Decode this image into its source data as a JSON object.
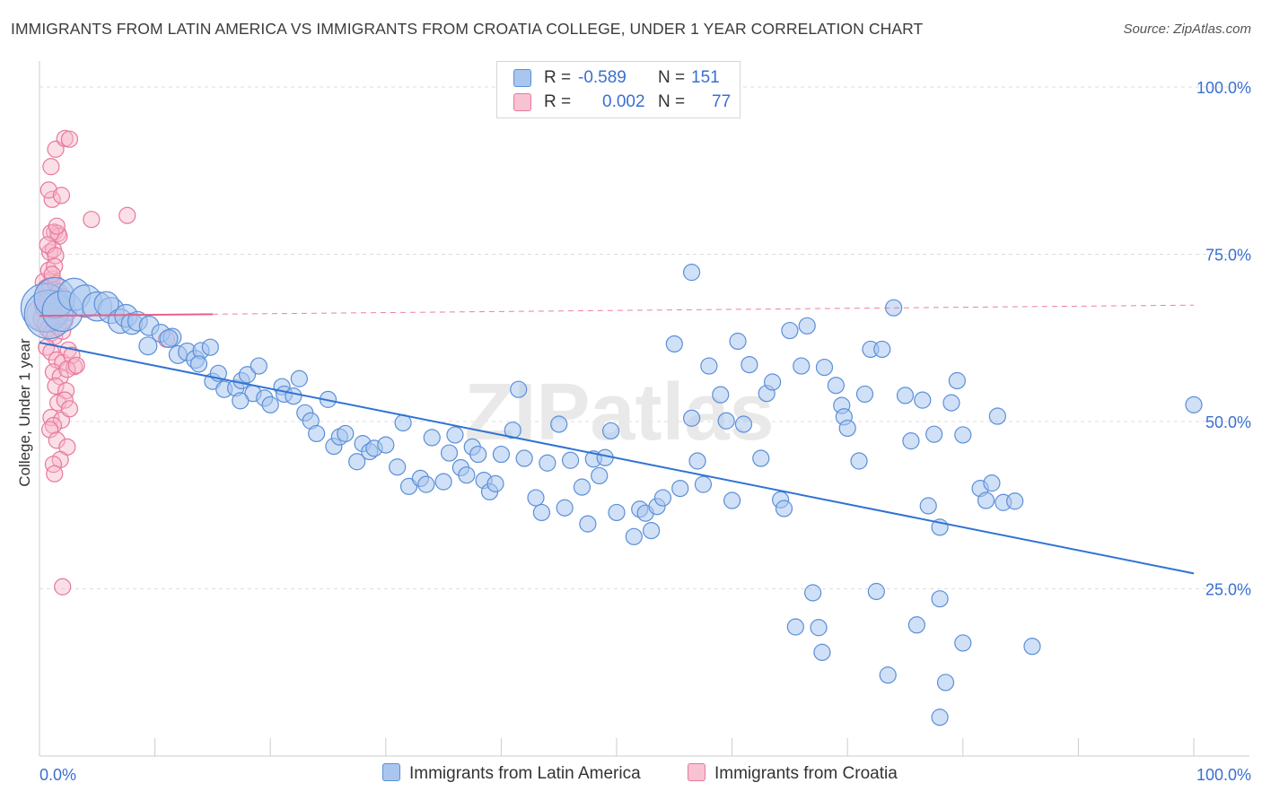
{
  "header": {
    "title": "IMMIGRANTS FROM LATIN AMERICA VS IMMIGRANTS FROM CROATIA COLLEGE, UNDER 1 YEAR CORRELATION CHART",
    "source": "Source: ZipAtlas.com"
  },
  "watermark": "ZIPatlas",
  "legend": {
    "r_label": "R =",
    "n_label": "N =",
    "rows": [
      {
        "r": "-0.589",
        "n": "151"
      },
      {
        "r": "0.002",
        "n": "77"
      }
    ]
  },
  "colors": {
    "blue_fill": "#a9c6ee",
    "blue_stroke": "#5b8fd8",
    "blue_line": "#2f73d2",
    "pink_fill": "#f7b7ca",
    "pink_stroke": "#e8779b",
    "pink_line": "#e8608a",
    "tick_label": "#3a6fd1",
    "grid": "#dddddd"
  },
  "chart_data": {
    "type": "scatter",
    "title": "IMMIGRANTS FROM LATIN AMERICA VS IMMIGRANTS FROM CROATIA COLLEGE, UNDER 1 YEAR CORRELATION CHART",
    "xlabel": "",
    "ylabel": "College, Under 1 year",
    "xlim": [
      0,
      100
    ],
    "ylim": [
      0,
      100
    ],
    "x_tick_labels": [
      "0.0%",
      "100.0%"
    ],
    "y_ticks": [
      25,
      50,
      75,
      100
    ],
    "y_tick_labels": [
      "25.0%",
      "50.0%",
      "75.0%",
      "100.0%"
    ],
    "grid": true,
    "legend_position": "top-center",
    "series": [
      {
        "name": "Immigrants from Latin America",
        "r": -0.589,
        "n": 151,
        "trend": {
          "x": [
            0,
            100
          ],
          "y": [
            61.8,
            27.3
          ]
        },
        "points": [
          [
            0.5,
            67,
            3
          ],
          [
            0.8,
            66,
            3
          ],
          [
            1.3,
            68.5,
            2.5
          ],
          [
            2,
            66.5,
            2.5
          ],
          [
            3,
            69,
            2
          ],
          [
            4,
            68,
            2
          ],
          [
            5,
            67.2,
            1.8
          ],
          [
            6.2,
            66.6,
            1.6
          ],
          [
            5.8,
            67.6,
            1.5
          ],
          [
            7,
            65,
            1.5
          ],
          [
            7.5,
            65.8,
            1.4
          ],
          [
            8,
            64.6,
            1.3
          ],
          [
            8.5,
            65,
            1.2
          ],
          [
            9.5,
            64.3,
            1.2
          ],
          [
            10.5,
            63.2,
            1.1
          ],
          [
            11.5,
            62.6,
            1.1
          ],
          [
            9.4,
            61.3,
            1.1
          ],
          [
            11.2,
            62.4,
            1.1
          ],
          [
            12,
            60,
            1.1
          ],
          [
            12.8,
            60.4,
            1.1
          ],
          [
            13.5,
            59.3,
            1.1
          ],
          [
            14.0,
            60.6,
            1
          ],
          [
            13.8,
            58.6,
            1
          ],
          [
            14.8,
            61.1,
            1
          ],
          [
            15.0,
            56,
            1
          ],
          [
            15.5,
            57.2,
            1
          ],
          [
            16,
            54.8,
            1
          ],
          [
            17,
            55,
            1
          ],
          [
            17.5,
            56.1,
            1
          ],
          [
            18,
            57,
            1
          ],
          [
            19,
            58.3,
            1
          ],
          [
            18.5,
            54.2,
            1
          ],
          [
            17.4,
            53.1,
            1
          ],
          [
            19.5,
            53.5,
            1
          ],
          [
            20,
            52.5,
            1
          ],
          [
            21,
            55.2,
            1
          ],
          [
            21.2,
            54.1,
            1
          ],
          [
            22,
            53.8,
            1
          ],
          [
            22.5,
            56.4,
            1
          ],
          [
            23,
            51.3,
            1
          ],
          [
            23.5,
            50.1,
            1
          ],
          [
            24,
            48.2,
            1
          ],
          [
            25,
            53.3,
            1
          ],
          [
            25.5,
            46.3,
            1
          ],
          [
            26,
            47.7,
            1
          ],
          [
            26.5,
            48.2,
            1
          ],
          [
            27.5,
            44,
            1
          ],
          [
            28,
            46.7,
            1
          ],
          [
            28.6,
            45.5,
            1
          ],
          [
            29,
            46,
            1
          ],
          [
            30,
            46.5,
            1
          ],
          [
            31,
            43.2,
            1
          ],
          [
            31.5,
            49.8,
            1
          ],
          [
            32,
            40.3,
            1
          ],
          [
            33,
            41.5,
            1
          ],
          [
            33.5,
            40.6,
            1
          ],
          [
            34,
            47.6,
            1
          ],
          [
            35,
            41,
            1
          ],
          [
            35.5,
            45.3,
            1
          ],
          [
            36,
            48,
            1
          ],
          [
            36.5,
            43.1,
            1
          ],
          [
            37,
            42,
            1
          ],
          [
            37.5,
            46.2,
            1
          ],
          [
            38,
            45.1,
            1
          ],
          [
            38.5,
            41.2,
            1
          ],
          [
            39,
            39.5,
            1
          ],
          [
            39.5,
            40.7,
            1
          ],
          [
            40,
            45.1,
            1
          ],
          [
            41,
            48.7,
            1
          ],
          [
            41.5,
            54.8,
            1
          ],
          [
            42,
            44.5,
            1
          ],
          [
            43,
            38.6,
            1
          ],
          [
            43.5,
            36.4,
            1
          ],
          [
            44,
            43.8,
            1
          ],
          [
            45,
            49.6,
            1
          ],
          [
            45.5,
            37.1,
            1
          ],
          [
            46,
            44.2,
            1
          ],
          [
            47,
            40.2,
            1
          ],
          [
            47.5,
            34.7,
            1
          ],
          [
            48,
            44.4,
            1
          ],
          [
            48.5,
            41.9,
            1
          ],
          [
            49,
            44.6,
            1
          ],
          [
            49.5,
            48.6,
            1
          ],
          [
            50,
            36.4,
            1
          ],
          [
            51.5,
            32.8,
            1
          ],
          [
            52,
            36.9,
            1
          ],
          [
            52.5,
            36.3,
            1
          ],
          [
            53,
            33.7,
            1
          ],
          [
            53.5,
            37.3,
            1
          ],
          [
            54,
            38.6,
            1
          ],
          [
            55,
            61.6,
            1
          ],
          [
            55.5,
            40,
            1
          ],
          [
            56.5,
            50.5,
            1
          ],
          [
            57,
            44.1,
            1
          ],
          [
            57.5,
            40.6,
            1
          ],
          [
            58,
            58.3,
            1
          ],
          [
            59,
            54,
            1
          ],
          [
            59.5,
            50.1,
            1
          ],
          [
            60,
            38.2,
            1
          ],
          [
            60.5,
            62,
            1
          ],
          [
            61,
            49.6,
            1
          ],
          [
            61.5,
            58.5,
            1
          ],
          [
            62.5,
            44.5,
            1
          ],
          [
            63,
            54.2,
            1
          ],
          [
            63.5,
            55.9,
            1
          ],
          [
            64.2,
            38.3,
            1
          ],
          [
            64.5,
            37,
            1
          ],
          [
            65,
            63.6,
            1
          ],
          [
            65.5,
            19.3,
            1
          ],
          [
            66,
            58.3,
            1
          ],
          [
            66.5,
            64.3,
            1
          ],
          [
            67,
            24.4,
            1
          ],
          [
            67.5,
            19.2,
            1
          ],
          [
            67.8,
            15.5,
            1
          ],
          [
            68,
            58.1,
            1
          ],
          [
            69,
            55.4,
            1
          ],
          [
            69.5,
            52.4,
            1
          ],
          [
            69.7,
            50.7,
            1
          ],
          [
            70,
            49,
            1
          ],
          [
            71,
            44.1,
            1
          ],
          [
            71.5,
            54.1,
            1
          ],
          [
            72,
            60.8,
            1
          ],
          [
            72.5,
            24.6,
            1
          ],
          [
            73,
            60.8,
            1
          ],
          [
            73.5,
            12.1,
            1
          ],
          [
            74,
            67,
            1
          ],
          [
            75,
            53.9,
            1
          ],
          [
            75.5,
            47.1,
            1
          ],
          [
            76,
            19.6,
            1
          ],
          [
            76.5,
            53.2,
            1
          ],
          [
            77,
            37.4,
            1
          ],
          [
            77.5,
            48.1,
            1
          ],
          [
            79,
            52.8,
            1
          ],
          [
            79.5,
            56.1,
            1
          ],
          [
            80,
            48,
            1
          ],
          [
            81.5,
            40,
            1
          ],
          [
            82,
            38.2,
            1
          ],
          [
            82.5,
            40.8,
            1
          ],
          [
            83,
            50.8,
            1
          ],
          [
            83.5,
            37.9,
            1
          ],
          [
            84.5,
            38.1,
            1
          ],
          [
            56.5,
            72.3,
            1
          ],
          [
            78,
            23.5,
            1
          ],
          [
            78,
            34.2,
            1
          ],
          [
            78.5,
            11,
            1
          ],
          [
            78,
            5.8,
            1
          ],
          [
            80,
            16.9,
            1
          ],
          [
            86,
            16.4,
            1
          ],
          [
            100,
            52.5,
            1
          ]
        ]
      },
      {
        "name": "Immigrants from Croatia",
        "r": 0.002,
        "n": 77,
        "trend": {
          "x": [
            0,
            100
          ],
          "y": [
            65.8,
            67.4
          ]
        },
        "trend_solid_until_x": 15,
        "points": [
          [
            0.3,
            66,
            2
          ],
          [
            0.5,
            65.4,
            1.5
          ],
          [
            0.6,
            67.5,
            1.5
          ],
          [
            0.8,
            69.1,
            1.3
          ],
          [
            1,
            67.9,
            1.3
          ],
          [
            1.2,
            66.9,
            1.2
          ],
          [
            1.5,
            68.3,
            1.2
          ],
          [
            1.8,
            65.8,
            1.1
          ],
          [
            0.4,
            70.8,
            1.1
          ],
          [
            0.6,
            69.9,
            1.1
          ],
          [
            0.9,
            70.2,
            1
          ],
          [
            1.1,
            71.3,
            1
          ],
          [
            1.4,
            70.6,
            1
          ],
          [
            1.7,
            69.4,
            1
          ],
          [
            2,
            68.7,
            1
          ],
          [
            2.3,
            67.6,
            1
          ],
          [
            0.5,
            64.6,
            1
          ],
          [
            0.7,
            63.8,
            1
          ],
          [
            1,
            63.2,
            1
          ],
          [
            1.3,
            62.7,
            1
          ],
          [
            1.6,
            64.2,
            1
          ],
          [
            2,
            63.5,
            1
          ],
          [
            2.2,
            65.1,
            1
          ],
          [
            2.5,
            66.3,
            1
          ],
          [
            0.6,
            61.1,
            1
          ],
          [
            1.0,
            60.4,
            1
          ],
          [
            1.5,
            59.2,
            1
          ],
          [
            2.0,
            58.8,
            1
          ],
          [
            2.5,
            60.7,
            1
          ],
          [
            3,
            58.2,
            1
          ],
          [
            1.2,
            57.4,
            1
          ],
          [
            1.8,
            56.7,
            1
          ],
          [
            1.4,
            55.3,
            1
          ],
          [
            2.3,
            54.6,
            1
          ],
          [
            1.6,
            52.8,
            1
          ],
          [
            2.2,
            53.2,
            1
          ],
          [
            1.0,
            50.6,
            1
          ],
          [
            1.9,
            50.2,
            1
          ],
          [
            2.6,
            51.9,
            1
          ],
          [
            1.2,
            49.4,
            1
          ],
          [
            0.9,
            48.8,
            1
          ],
          [
            1.5,
            47.2,
            1
          ],
          [
            2.4,
            46.2,
            1
          ],
          [
            1.8,
            44.3,
            1
          ],
          [
            1.2,
            43.6,
            1
          ],
          [
            1.3,
            42.2,
            1
          ],
          [
            2.0,
            25.3,
            1
          ],
          [
            1.1,
            83.2,
            1
          ],
          [
            0.8,
            84.6,
            1
          ],
          [
            1.9,
            83.8,
            1
          ],
          [
            1.4,
            90.7,
            1
          ],
          [
            2.2,
            92.3,
            1
          ],
          [
            2.6,
            92.2,
            1
          ],
          [
            1.0,
            88.1,
            1
          ],
          [
            4.5,
            80.2,
            1
          ],
          [
            7.6,
            80.8,
            1
          ],
          [
            1.3,
            78.3,
            1
          ],
          [
            1.6,
            78.1,
            1
          ],
          [
            1.7,
            77.7,
            1
          ],
          [
            1.0,
            78.2,
            1
          ],
          [
            1.5,
            79.2,
            1
          ],
          [
            0.9,
            75.3,
            1
          ],
          [
            1.2,
            75.7,
            1
          ],
          [
            0.7,
            76.4,
            1
          ],
          [
            1.4,
            74.8,
            1
          ],
          [
            0.8,
            72.6,
            1
          ],
          [
            1.3,
            73.2,
            1
          ],
          [
            1.1,
            72.0,
            1
          ],
          [
            2.8,
            59.9,
            1
          ],
          [
            2.4,
            57.8,
            1
          ],
          [
            3.2,
            58.4,
            1
          ],
          [
            11,
            62.3,
            1
          ],
          [
            0.4,
            66.7,
            1
          ],
          [
            0.6,
            68.0,
            1
          ],
          [
            0.9,
            66.5,
            1
          ],
          [
            1.2,
            65.6,
            1
          ]
        ]
      }
    ]
  },
  "bottom_legend": [
    {
      "label": "Immigrants from Latin America"
    },
    {
      "label": "Immigrants from Croatia"
    }
  ]
}
